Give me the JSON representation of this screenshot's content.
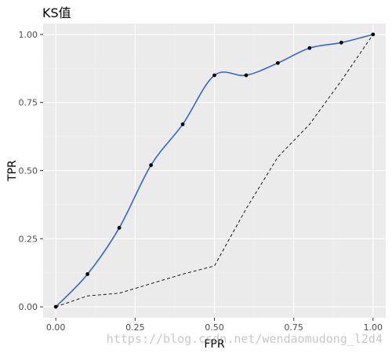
{
  "chart_data": {
    "type": "line",
    "title": "KS值",
    "xlabel": "FPR",
    "ylabel": "TPR",
    "xlim": [
      -0.04,
      1.04
    ],
    "ylim": [
      -0.04,
      1.04
    ],
    "x_ticks": [
      0.0,
      0.25,
      0.5,
      0.75,
      1.0
    ],
    "x_tick_labels": [
      "0.00",
      "0.25",
      "0.50",
      "0.75",
      "1.00"
    ],
    "y_ticks": [
      0.0,
      0.25,
      0.5,
      0.75,
      1.0
    ],
    "y_tick_labels": [
      "0.00",
      "0.25",
      "0.50",
      "0.75",
      "1.00"
    ],
    "grid": true,
    "legend": "none",
    "series": [
      {
        "style": "points-with-smooth-line",
        "color": "#3366cc",
        "point_color": "#000000",
        "x": [
          0.0,
          0.1,
          0.2,
          0.3,
          0.4,
          0.5,
          0.6,
          0.7,
          0.8,
          0.9,
          1.0
        ],
        "y": [
          0.0,
          0.12,
          0.29,
          0.52,
          0.67,
          0.85,
          0.85,
          0.895,
          0.95,
          0.97,
          1.0
        ]
      },
      {
        "style": "dashed-line",
        "color": "#000000",
        "x": [
          0.0,
          0.1,
          0.2,
          0.3,
          0.4,
          0.5,
          0.6,
          0.7,
          0.8,
          0.9,
          1.0
        ],
        "y": [
          0.0,
          0.04,
          0.05,
          0.085,
          0.12,
          0.15,
          0.36,
          0.55,
          0.67,
          0.83,
          1.0
        ]
      }
    ],
    "watermark": "https://blog.csdn.net/wendaomudong_l2d4",
    "colors": {
      "panel_bg": "#ebebeb",
      "grid_major": "#ffffff"
    }
  }
}
